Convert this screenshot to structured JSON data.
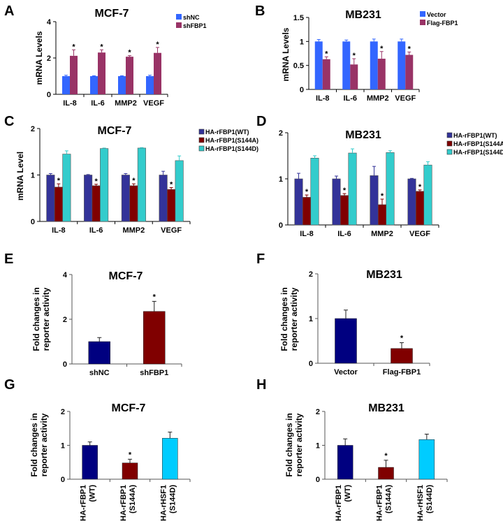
{
  "figure": {
    "panels": [
      "A",
      "B",
      "C",
      "D",
      "E",
      "F",
      "G",
      "H"
    ]
  },
  "colors": {
    "blue": "#3366ff",
    "magenta": "#993366",
    "navy": "#333399",
    "maroon": "#800000",
    "teal": "#33cccc",
    "dark_navy": "#000080",
    "sky": "#00ccff"
  },
  "chart_data": [
    {
      "panel": "A",
      "type": "bar",
      "title": "MCF-7",
      "xlabel": "",
      "ylabel": "mRNA Levels",
      "ylim": [
        0,
        4
      ],
      "yticks": [
        "0",
        "2",
        "4"
      ],
      "ytick_values": [
        0,
        2,
        4
      ],
      "categories": [
        "IL-8",
        "IL-6",
        "MMP2",
        "VEGF"
      ],
      "series": [
        {
          "name": "shNC",
          "color": "#3366ff",
          "values": [
            1.0,
            1.0,
            1.0,
            1.0
          ],
          "errors": [
            0.05,
            0.02,
            0.02,
            0.05
          ],
          "sig": [
            false,
            false,
            false,
            false
          ]
        },
        {
          "name": "shFBP1",
          "color": "#993366",
          "values": [
            2.12,
            2.3,
            2.07,
            2.28
          ],
          "errors": [
            0.33,
            0.15,
            0.06,
            0.3
          ],
          "sig": [
            true,
            true,
            true,
            true
          ]
        }
      ],
      "legend": "right",
      "grid": false
    },
    {
      "panel": "B",
      "type": "bar",
      "title": "MB231",
      "xlabel": "",
      "ylabel": "mRNA Levels",
      "ylim": [
        0,
        1.5
      ],
      "yticks": [
        "0",
        "0.5",
        "1",
        "1.5"
      ],
      "ytick_values": [
        0,
        0.5,
        1,
        1.5
      ],
      "categories": [
        "IL-8",
        "IL-6",
        "MMP2",
        "VEGF"
      ],
      "series": [
        {
          "name": "Vector",
          "color": "#3366ff",
          "values": [
            1.0,
            1.0,
            1.0,
            1.0
          ],
          "errors": [
            0.04,
            0.03,
            0.05,
            0.05
          ],
          "sig": [
            false,
            false,
            false,
            false
          ]
        },
        {
          "name": "Flag-FBP1",
          "color": "#993366",
          "values": [
            0.63,
            0.52,
            0.64,
            0.72
          ],
          "errors": [
            0.05,
            0.12,
            0.15,
            0.06
          ],
          "sig": [
            true,
            true,
            true,
            true
          ]
        }
      ],
      "legend": "right",
      "grid": false
    },
    {
      "panel": "C",
      "type": "bar",
      "title": "MCF-7",
      "xlabel": "",
      "ylabel": "mRNA Level",
      "ylim": [
        0,
        2
      ],
      "yticks": [
        "0",
        "1",
        "2"
      ],
      "ytick_values": [
        0,
        1,
        2
      ],
      "categories": [
        "IL-8",
        "IL-6",
        "MMP2",
        "VEGF"
      ],
      "series": [
        {
          "name": "HA-rFBP1(WT)",
          "color": "#333399",
          "values": [
            1.0,
            1.0,
            1.0,
            1.0
          ],
          "errors": [
            0.03,
            0.01,
            0.03,
            0.08
          ],
          "sig": [
            false,
            false,
            false,
            false
          ]
        },
        {
          "name": "HA-rFBP1(S144A)",
          "color": "#800000",
          "values": [
            0.74,
            0.77,
            0.77,
            0.69
          ],
          "errors": [
            0.07,
            0.03,
            0.04,
            0.04
          ],
          "sig": [
            true,
            true,
            true,
            true
          ]
        },
        {
          "name": "HA-rFBP1(S144D)",
          "color": "#33cccc",
          "values": [
            1.45,
            1.57,
            1.58,
            1.31
          ],
          "errors": [
            0.07,
            0.01,
            0.01,
            0.1
          ],
          "sig": [
            false,
            false,
            false,
            false
          ]
        }
      ],
      "legend": "right",
      "grid": false
    },
    {
      "panel": "D",
      "type": "bar",
      "title": "MB231",
      "xlabel": "",
      "ylabel": "",
      "ylim": [
        0,
        2
      ],
      "yticks": [
        "0",
        "1",
        "2"
      ],
      "ytick_values": [
        0,
        1,
        2
      ],
      "categories": [
        "IL-8",
        "IL-6",
        "MMP2",
        "VEGF"
      ],
      "series": [
        {
          "name": "HA-rFBP1(WT)",
          "color": "#333399",
          "values": [
            1.0,
            1.0,
            1.07,
            1.0
          ],
          "errors": [
            0.12,
            0.06,
            0.2,
            0.01
          ],
          "sig": [
            false,
            false,
            false,
            false
          ]
        },
        {
          "name": "HA-rFBP1(S144A)",
          "color": "#800000",
          "values": [
            0.6,
            0.64,
            0.44,
            0.73
          ],
          "errors": [
            0.05,
            0.04,
            0.12,
            0.03
          ],
          "sig": [
            true,
            true,
            true,
            true
          ]
        },
        {
          "name": "HA-rFBP1(S144D)",
          "color": "#33cccc",
          "values": [
            1.45,
            1.56,
            1.57,
            1.3
          ],
          "errors": [
            0.05,
            0.09,
            0.04,
            0.07
          ],
          "sig": [
            false,
            false,
            false,
            false
          ]
        }
      ],
      "legend": "right",
      "grid": false
    },
    {
      "panel": "E",
      "type": "bar",
      "title": "MCF-7",
      "xlabel": "",
      "ylabel": "Fold changes in reporter activity",
      "ylabel_lines": [
        "Fold changes in",
        "reporter activity"
      ],
      "ylim": [
        0,
        4
      ],
      "yticks": [
        "0",
        "2",
        "4"
      ],
      "ytick_values": [
        0,
        2,
        4
      ],
      "categories": [
        "shNC",
        "shFBP1"
      ],
      "series": [
        {
          "name": "",
          "colors": [
            "#000080",
            "#800000"
          ],
          "values": [
            1.0,
            2.35
          ],
          "errors": [
            0.18,
            0.45
          ],
          "sig": [
            false,
            true
          ]
        }
      ],
      "legend": "none",
      "grid": false
    },
    {
      "panel": "F",
      "type": "bar",
      "title": "MB231",
      "xlabel": "",
      "ylabel": "Fold changes in reporter activity",
      "ylabel_lines": [
        "Fold changes in",
        "reporter activity"
      ],
      "ylim": [
        0,
        2
      ],
      "yticks": [
        "0",
        "1",
        "2"
      ],
      "ytick_values": [
        0,
        1,
        2
      ],
      "categories": [
        "Vector",
        "Flag-FBP1"
      ],
      "series": [
        {
          "name": "",
          "colors": [
            "#000080",
            "#800000"
          ],
          "values": [
            1.0,
            0.33
          ],
          "errors": [
            0.19,
            0.13
          ],
          "sig": [
            false,
            true
          ]
        }
      ],
      "legend": "none",
      "grid": false
    },
    {
      "panel": "G",
      "type": "bar",
      "title": "MCF-7",
      "xlabel": "",
      "ylabel": "Fold changes in reporter activity",
      "ylabel_lines": [
        "Fold changes in",
        "reporter activity"
      ],
      "ylim": [
        0,
        2
      ],
      "yticks": [
        "0",
        "1",
        "2"
      ],
      "ytick_values": [
        0,
        1,
        2
      ],
      "categories": [
        "HA-rFBP1 (WT)",
        "HA-rFBP1 (S144A)",
        "HA-rHSF1 (S144D)"
      ],
      "category_lines": [
        [
          "HA-rFBP1",
          "(WT)"
        ],
        [
          "HA-rFBP1",
          "(S144A)"
        ],
        [
          "HA-rHSF1",
          "(S144D)"
        ]
      ],
      "series": [
        {
          "name": "",
          "colors": [
            "#000080",
            "#800000",
            "#00ccff"
          ],
          "values": [
            1.0,
            0.48,
            1.21
          ],
          "errors": [
            0.1,
            0.11,
            0.18
          ],
          "sig": [
            false,
            true,
            false
          ]
        }
      ],
      "legend": "none",
      "grid": false
    },
    {
      "panel": "H",
      "type": "bar",
      "title": "MB231",
      "xlabel": "",
      "ylabel": "Fold changes in reporter activity",
      "ylabel_lines": [
        "Fold changes in",
        "reporter activity"
      ],
      "ylim": [
        0,
        2
      ],
      "yticks": [
        "0",
        "1",
        "2"
      ],
      "ytick_values": [
        0,
        1,
        2
      ],
      "categories": [
        "HA-rFBP1 (WT)",
        "HA-rFBP1 (S144A)",
        "HA-rHSF1 (S144D)"
      ],
      "category_lines": [
        [
          "HA-rFBP1",
          "(WT)"
        ],
        [
          "HA-rFBP1",
          "(S144A)"
        ],
        [
          "HA-rHSF1",
          "(S144D)"
        ]
      ],
      "series": [
        {
          "name": "",
          "colors": [
            "#000080",
            "#800000",
            "#00ccff"
          ],
          "values": [
            1.0,
            0.35,
            1.17
          ],
          "errors": [
            0.19,
            0.21,
            0.16
          ],
          "sig": [
            false,
            true,
            false
          ]
        }
      ],
      "legend": "none",
      "grid": false
    }
  ],
  "significance_marker": "*"
}
